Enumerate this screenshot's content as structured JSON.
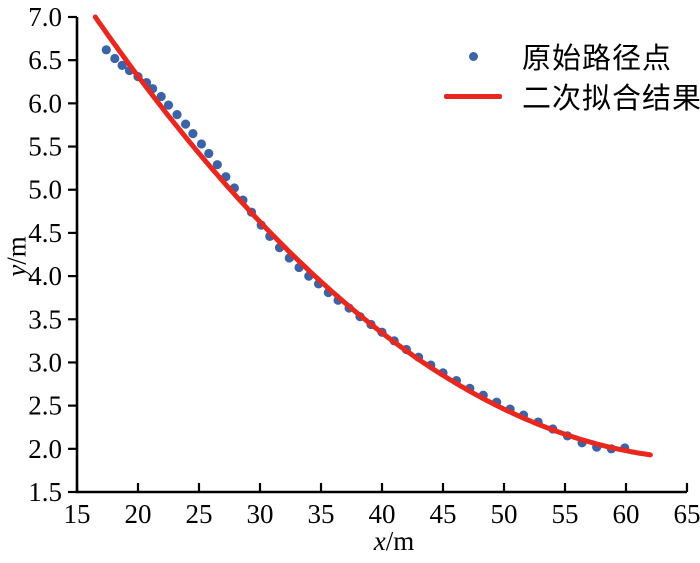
{
  "figure": {
    "background": "#ffffff",
    "axis_color": "#000000"
  },
  "chart_data": {
    "type": "scatter",
    "title": "",
    "xlabel": {
      "variable": "x",
      "unit": "/m"
    },
    "ylabel": {
      "variable": "y",
      "unit": "/m"
    },
    "xlim": [
      15,
      65
    ],
    "ylim": [
      1.5,
      7.0
    ],
    "x_tick_values": [
      15,
      20,
      25,
      30,
      35,
      40,
      45,
      50,
      55,
      60,
      65
    ],
    "x_tick_labels": [
      "15",
      "20",
      "25",
      "30",
      "35",
      "40",
      "45",
      "50",
      "55",
      "60",
      "65"
    ],
    "y_tick_values": [
      1.5,
      2.0,
      2.5,
      3.0,
      3.5,
      4.0,
      4.5,
      5.0,
      5.5,
      6.0,
      6.5,
      7.0
    ],
    "y_tick_labels": [
      "1.5",
      "2.0",
      "2.5",
      "3.0",
      "3.5",
      "4.0",
      "4.5",
      "5.0",
      "5.5",
      "6.0",
      "6.5",
      "7.0"
    ],
    "grid": false,
    "legend_position": "upper-right",
    "series": [
      {
        "name": "原始路径点",
        "type": "scatter",
        "marker": "circle",
        "color": "#3c62a8",
        "points": [
          [
            17.4,
            6.62
          ],
          [
            18.1,
            6.52
          ],
          [
            18.7,
            6.44
          ],
          [
            19.3,
            6.38
          ],
          [
            20.0,
            6.31
          ],
          [
            20.7,
            6.24
          ],
          [
            21.2,
            6.17
          ],
          [
            21.9,
            6.08
          ],
          [
            22.5,
            5.98
          ],
          [
            23.2,
            5.87
          ],
          [
            23.9,
            5.76
          ],
          [
            24.5,
            5.65
          ],
          [
            25.2,
            5.53
          ],
          [
            25.8,
            5.42
          ],
          [
            26.5,
            5.29
          ],
          [
            27.2,
            5.15
          ],
          [
            27.9,
            5.02
          ],
          [
            28.6,
            4.88
          ],
          [
            29.3,
            4.74
          ],
          [
            30.1,
            4.59
          ],
          [
            30.8,
            4.46
          ],
          [
            31.6,
            4.33
          ],
          [
            32.4,
            4.21
          ],
          [
            33.2,
            4.1
          ],
          [
            34.0,
            4.0
          ],
          [
            34.8,
            3.91
          ],
          [
            35.6,
            3.81
          ],
          [
            36.4,
            3.72
          ],
          [
            37.3,
            3.63
          ],
          [
            38.2,
            3.53
          ],
          [
            39.1,
            3.44
          ],
          [
            40.0,
            3.35
          ],
          [
            41.0,
            3.25
          ],
          [
            42.0,
            3.15
          ],
          [
            43.0,
            3.06
          ],
          [
            44.0,
            2.97
          ],
          [
            45.0,
            2.88
          ],
          [
            46.1,
            2.79
          ],
          [
            47.2,
            2.7
          ],
          [
            48.3,
            2.62
          ],
          [
            49.4,
            2.54
          ],
          [
            50.5,
            2.46
          ],
          [
            51.6,
            2.39
          ],
          [
            52.8,
            2.31
          ],
          [
            54.0,
            2.23
          ],
          [
            55.2,
            2.15
          ],
          [
            56.4,
            2.07
          ],
          [
            57.6,
            2.02
          ],
          [
            58.8,
            2.0
          ],
          [
            59.9,
            2.01
          ]
        ]
      },
      {
        "name": "二次拟合结果",
        "type": "line",
        "color": "#e8281e",
        "fit": "quadratic",
        "coefficients": {
          "a": 0.0020085,
          "b": -0.26909,
          "c": 10.893
        },
        "x_range": [
          16.5,
          62.0
        ]
      }
    ]
  }
}
